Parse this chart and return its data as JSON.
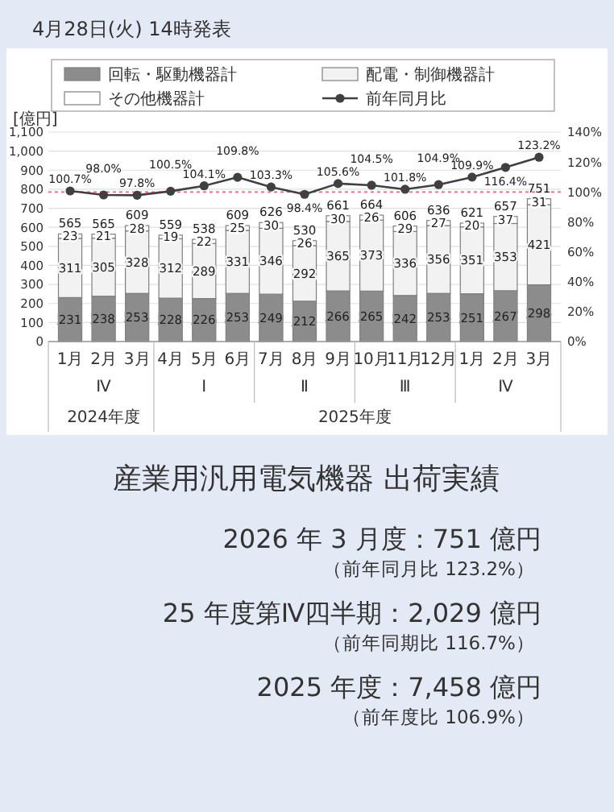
{
  "chart_data": {
    "type": "bar",
    "title": "産業用汎用電気機器 出荷実績",
    "ylabel": "[億円]",
    "categories": [
      "1月",
      "2月",
      "3月",
      "4月",
      "5月",
      "6月",
      "7月",
      "8月",
      "9月",
      "10月",
      "11月",
      "12月",
      "1月",
      "2月",
      "3月"
    ],
    "stacked": true,
    "series": [
      {
        "name": "回転・駆動機器計",
        "color": "#8c8c8c",
        "values": [
          231,
          238,
          253,
          228,
          226,
          253,
          249,
          212,
          266,
          265,
          242,
          253,
          251,
          267,
          298
        ],
        "value_labels": [
          "231",
          "238",
          "253",
          "228",
          "226",
          "253",
          "249",
          "212",
          "266",
          "265",
          "242",
          "253",
          "251",
          "267",
          "298"
        ]
      },
      {
        "name": "配電・制御機器計",
        "color": "#f2f2f2",
        "values": [
          311,
          305,
          328,
          312,
          289,
          331,
          346,
          292,
          365,
          373,
          336,
          356,
          351,
          353,
          421
        ],
        "value_labels": [
          "311",
          "305",
          "328",
          "312",
          "289",
          "331",
          "346",
          "292",
          "365",
          "373",
          "336",
          "356",
          "351",
          "353",
          "421"
        ]
      },
      {
        "name": "その他機器計",
        "color": "#ffffff",
        "values": [
          23,
          21,
          28,
          19,
          22,
          25,
          30,
          26,
          30,
          26,
          29,
          27,
          20,
          37,
          31
        ],
        "value_labels": [
          "23",
          "21",
          "28",
          "19",
          "22",
          "25",
          "30",
          "26",
          "30",
          "26",
          "29",
          "27",
          "20",
          "37",
          "31"
        ]
      },
      {
        "name": "前年同月比",
        "type": "line",
        "axis": "y2",
        "color": "#404040",
        "values": [
          100.7,
          98.0,
          97.8,
          100.5,
          104.1,
          109.8,
          103.3,
          98.4,
          105.6,
          104.5,
          101.8,
          104.9,
          109.9,
          116.4,
          123.2
        ],
        "value_labels": [
          "100.7%",
          "98.0%",
          "97.8%",
          "100.5%",
          "104.1%",
          "109.8%",
          "103.3%",
          "98.4%",
          "105.6%",
          "104.5%",
          "101.8%",
          "104.9%",
          "109.9%",
          "116.4%",
          "123.2%"
        ]
      }
    ],
    "totals": [
      "565",
      "565",
      "609",
      "559",
      "538",
      "609",
      "626",
      "530",
      "661",
      "664",
      "606",
      "636",
      "621",
      "657",
      "751"
    ],
    "marker": "circle",
    "ylim": [
      0,
      1100
    ],
    "yticks": [
      0,
      100,
      200,
      300,
      400,
      500,
      600,
      700,
      800,
      900,
      {
        "value": 1000,
        "label": "1,000"
      },
      {
        "value": 1100,
        "label": "1,100"
      }
    ],
    "y2lim": [
      0,
      140
    ],
    "y2ticks": [
      {
        "value": 0,
        "label": "0%"
      },
      {
        "value": 20,
        "label": "20%"
      },
      {
        "value": 40,
        "label": "40%"
      },
      {
        "value": 60,
        "label": "60%"
      },
      {
        "value": 80,
        "label": "80%"
      },
      {
        "value": 100,
        "label": "100%"
      },
      {
        "value": 120,
        "label": "120%"
      },
      {
        "value": 140,
        "label": "140%"
      }
    ],
    "ref_lines": [
      {
        "axis": "y2",
        "value": 100,
        "color": "#ff6666",
        "line_style": "dotted"
      }
    ],
    "grid": "y",
    "legend": "top",
    "annotations": [
      "4月28日(火) 14時発表",
      "Ⅳ",
      "Ⅰ",
      "Ⅱ",
      "Ⅲ",
      "Ⅳ",
      "2024年度",
      "2025年度",
      "2026 年 3 月度：751 億円",
      "（前年同月比 123.2%）",
      "25 年度第Ⅳ四半期：2,029 億円",
      "（前年同期比 116.7%）",
      "2025 年度：7,458 億円",
      "（前年度比 106.9%）"
    ]
  }
}
